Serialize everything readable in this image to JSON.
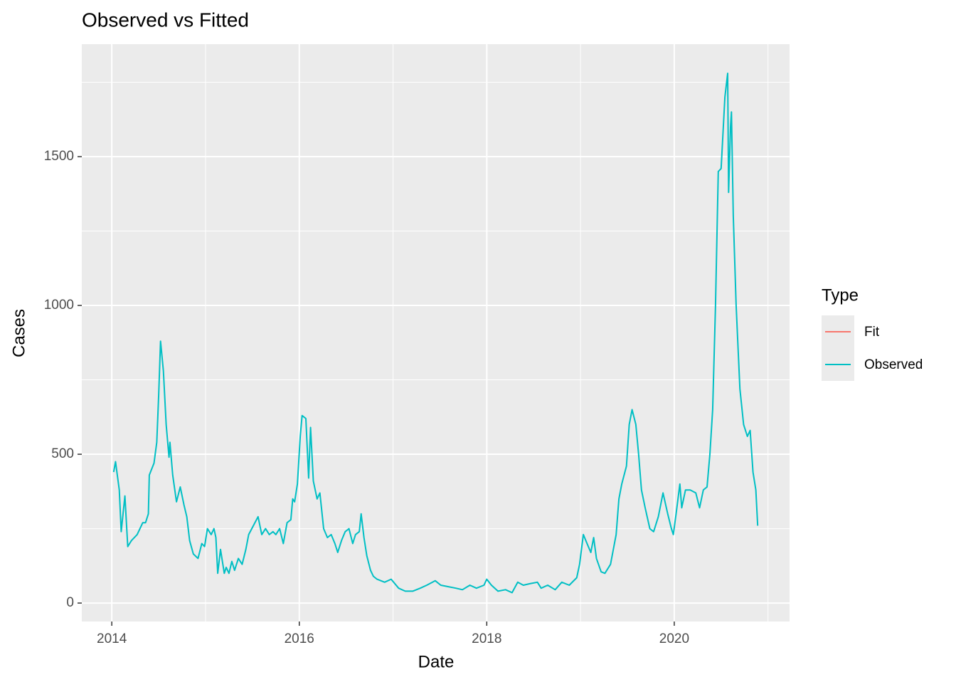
{
  "chart_data": {
    "type": "line",
    "title": "Observed vs Fitted",
    "x_label": "Date",
    "y_label": "Cases",
    "legend_title": "Type",
    "legend_position": "right",
    "grid": true,
    "xlim": [
      2013.68,
      2021.23
    ],
    "xticks": [
      2014,
      2016,
      2018,
      2020
    ],
    "xminor": [
      2015,
      2017,
      2019,
      2021
    ],
    "ylim": [
      -62,
      1878
    ],
    "yticks": [
      0,
      500,
      1000,
      1500
    ],
    "yminor": [
      250,
      750,
      1250,
      1750
    ],
    "series": [
      {
        "name": "Fit",
        "color": "#F8766D",
        "x": [],
        "values": []
      },
      {
        "name": "Observed",
        "color": "#00BFC4",
        "x": [
          2014.02,
          2014.04,
          2014.08,
          2014.1,
          2014.12,
          2014.14,
          2014.17,
          2014.21,
          2014.27,
          2014.33,
          2014.36,
          2014.39,
          2014.4,
          2014.45,
          2014.48,
          2014.5,
          2014.52,
          2014.55,
          2014.58,
          2014.61,
          2014.62,
          2014.65,
          2014.69,
          2014.73,
          2014.77,
          2014.8,
          2014.83,
          2014.87,
          2014.92,
          2014.96,
          2014.99,
          2015.02,
          2015.06,
          2015.09,
          2015.11,
          2015.13,
          2015.16,
          2015.2,
          2015.22,
          2015.25,
          2015.28,
          2015.31,
          2015.35,
          2015.39,
          2015.43,
          2015.46,
          2015.51,
          2015.56,
          2015.6,
          2015.64,
          2015.68,
          2015.72,
          2015.75,
          2015.79,
          2015.83,
          2015.87,
          2015.91,
          2015.93,
          2015.95,
          2015.98,
          2016.01,
          2016.03,
          2016.07,
          2016.1,
          2016.12,
          2016.15,
          2016.19,
          2016.22,
          2016.26,
          2016.3,
          2016.34,
          2016.38,
          2016.41,
          2016.45,
          2016.49,
          2016.53,
          2016.57,
          2016.6,
          2016.64,
          2016.66,
          2016.69,
          2016.72,
          2016.76,
          2016.79,
          2016.83,
          2016.91,
          2016.98,
          2017.06,
          2017.13,
          2017.21,
          2017.29,
          2017.36,
          2017.45,
          2017.51,
          2017.59,
          2017.67,
          2017.74,
          2017.82,
          2017.89,
          2017.97,
          2018.0,
          2018.05,
          2018.12,
          2018.2,
          2018.27,
          2018.33,
          2018.39,
          2018.46,
          2018.54,
          2018.58,
          2018.65,
          2018.73,
          2018.8,
          2018.88,
          2018.96,
          2018.99,
          2019.03,
          2019.07,
          2019.11,
          2019.14,
          2019.17,
          2019.22,
          2019.26,
          2019.32,
          2019.38,
          2019.41,
          2019.44,
          2019.49,
          2019.52,
          2019.55,
          2019.59,
          2019.62,
          2019.65,
          2019.69,
          2019.74,
          2019.78,
          2019.83,
          2019.88,
          2019.93,
          2019.97,
          2019.99,
          2020.02,
          2020.06,
          2020.08,
          2020.12,
          2020.17,
          2020.23,
          2020.27,
          2020.31,
          2020.35,
          2020.38,
          2020.41,
          2020.44,
          2020.47,
          2020.5,
          2020.54,
          2020.57,
          2020.58,
          2020.6,
          2020.61,
          2020.63,
          2020.66,
          2020.7,
          2020.74,
          2020.78,
          2020.81,
          2020.84,
          2020.87,
          2020.89
        ],
        "values": [
          440,
          475,
          380,
          240,
          300,
          360,
          190,
          210,
          230,
          270,
          270,
          300,
          430,
          470,
          540,
          700,
          880,
          780,
          600,
          490,
          540,
          430,
          340,
          390,
          330,
          290,
          210,
          165,
          150,
          200,
          190,
          250,
          230,
          250,
          220,
          100,
          180,
          100,
          120,
          100,
          140,
          110,
          150,
          130,
          180,
          230,
          260,
          290,
          230,
          250,
          230,
          240,
          230,
          250,
          200,
          270,
          280,
          350,
          340,
          400,
          560,
          630,
          620,
          420,
          590,
          410,
          350,
          370,
          250,
          220,
          230,
          200,
          170,
          210,
          240,
          250,
          200,
          230,
          240,
          300,
          220,
          160,
          110,
          90,
          80,
          70,
          80,
          50,
          40,
          40,
          50,
          60,
          75,
          60,
          55,
          50,
          45,
          60,
          50,
          60,
          80,
          60,
          40,
          45,
          35,
          70,
          60,
          65,
          70,
          50,
          60,
          45,
          70,
          60,
          85,
          130,
          230,
          200,
          170,
          220,
          150,
          105,
          100,
          130,
          230,
          350,
          400,
          460,
          600,
          650,
          600,
          500,
          380,
          320,
          250,
          240,
          290,
          370,
          300,
          250,
          230,
          300,
          400,
          320,
          380,
          380,
          370,
          320,
          380,
          390,
          500,
          650,
          1000,
          1450,
          1460,
          1700,
          1780,
          1380,
          1600,
          1650,
          1300,
          1000,
          720,
          600,
          560,
          580,
          440,
          380,
          260
        ]
      }
    ]
  }
}
